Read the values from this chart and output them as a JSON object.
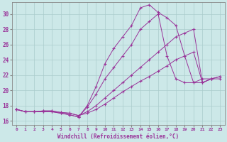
{
  "xlabel": "Windchill (Refroidissement éolien,°C)",
  "bg_color": "#cce8e8",
  "line_color": "#993399",
  "grid_color": "#aacccc",
  "xlim": [
    -0.5,
    23.5
  ],
  "ylim": [
    15.5,
    31.5
  ],
  "xticks": [
    0,
    1,
    2,
    3,
    4,
    5,
    6,
    7,
    8,
    9,
    10,
    11,
    12,
    13,
    14,
    15,
    16,
    17,
    18,
    19,
    20,
    21,
    22,
    23
  ],
  "yticks": [
    16,
    18,
    20,
    22,
    24,
    26,
    28,
    30
  ],
  "series": [
    {
      "x": [
        0,
        1,
        2,
        3,
        4,
        5,
        6,
        7,
        8,
        9,
        10,
        11,
        12,
        13,
        14,
        15,
        16,
        17,
        18,
        19,
        20,
        21,
        22
      ],
      "y": [
        17.5,
        17.2,
        17.2,
        17.2,
        17.2,
        17.0,
        16.8,
        16.5,
        18.0,
        20.5,
        23.5,
        25.5,
        27.0,
        28.5,
        30.8,
        31.2,
        30.2,
        29.5,
        28.5,
        24.5,
        21.0,
        21.5,
        21.5
      ]
    },
    {
      "x": [
        0,
        1,
        2,
        3,
        4,
        5,
        6,
        7,
        8,
        9,
        10,
        11,
        12,
        13,
        14,
        15,
        16,
        17,
        18,
        19,
        20,
        21,
        22,
        23
      ],
      "y": [
        17.5,
        17.2,
        17.2,
        17.2,
        17.2,
        17.0,
        16.8,
        16.5,
        17.8,
        19.5,
        21.5,
        23.0,
        24.5,
        26.0,
        28.0,
        29.0,
        30.0,
        24.5,
        21.5,
        21.0,
        21.0,
        21.0,
        21.5,
        21.5
      ]
    },
    {
      "x": [
        0,
        1,
        2,
        3,
        4,
        5,
        6,
        7,
        8,
        9,
        10,
        11,
        12,
        13,
        14,
        15,
        16,
        17,
        18,
        19,
        20,
        21,
        22,
        23
      ],
      "y": [
        17.5,
        17.2,
        17.2,
        17.3,
        17.3,
        17.1,
        17.0,
        16.7,
        17.0,
        17.5,
        18.2,
        19.0,
        19.8,
        20.5,
        21.2,
        21.8,
        22.5,
        23.2,
        24.0,
        24.5,
        25.0,
        21.0,
        21.5,
        21.8
      ]
    },
    {
      "x": [
        0,
        1,
        2,
        3,
        4,
        5,
        6,
        7,
        8,
        9,
        10,
        11,
        12,
        13,
        14,
        15,
        16,
        17,
        18,
        19,
        20,
        21,
        22,
        23
      ],
      "y": [
        17.5,
        17.2,
        17.2,
        17.3,
        17.3,
        17.1,
        17.0,
        16.7,
        17.2,
        18.0,
        19.0,
        20.0,
        21.0,
        22.0,
        23.0,
        24.0,
        25.0,
        26.0,
        27.0,
        27.5,
        28.0,
        21.0,
        21.5,
        21.8
      ]
    }
  ]
}
